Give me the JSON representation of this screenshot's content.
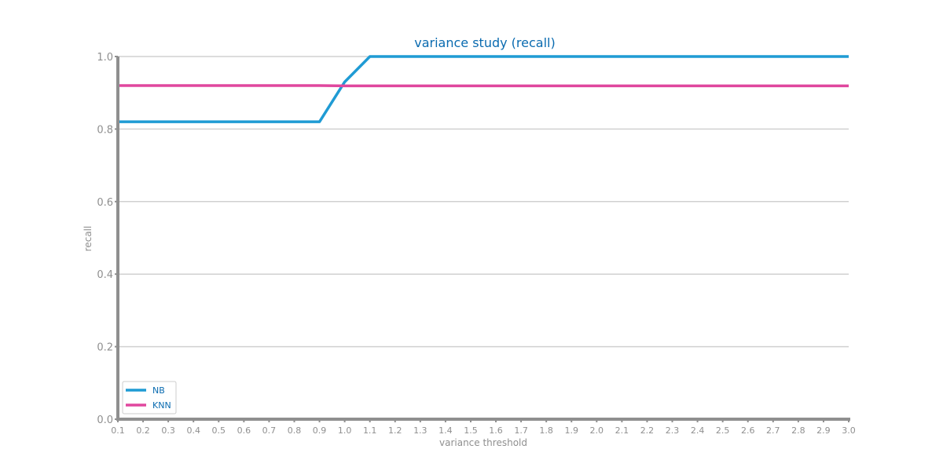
{
  "chart_data": {
    "type": "line",
    "title": "variance study (recall)",
    "xlabel": "variance threshold",
    "ylabel": "recall",
    "x": [
      0.1,
      0.2,
      0.3,
      0.4,
      0.5,
      0.6,
      0.7,
      0.8,
      0.9,
      1.0,
      1.1,
      1.2,
      1.3,
      1.4,
      1.5,
      1.6,
      1.7,
      1.8,
      1.9,
      2.0,
      2.1,
      2.2,
      2.3,
      2.4,
      2.5,
      2.6,
      2.7,
      2.8,
      2.9,
      3.0
    ],
    "x_tick_labels": [
      "0.1",
      "0.2",
      "0.3",
      "0.4",
      "0.5",
      "0.6",
      "0.7",
      "0.8",
      "0.9",
      "1.0",
      "1.1",
      "1.2",
      "1.3",
      "1.4",
      "1.5",
      "1.6",
      "1.7",
      "1.8",
      "1.9",
      "2.0",
      "2.1",
      "2.2",
      "2.3",
      "2.4",
      "2.5",
      "2.6",
      "2.7",
      "2.8",
      "2.9",
      "3.0"
    ],
    "y_tick_values": [
      0.0,
      0.2,
      0.4,
      0.6,
      0.8,
      1.0
    ],
    "y_tick_labels": [
      "0.0",
      "0.2",
      "0.4",
      "0.6",
      "0.8",
      "1.0"
    ],
    "xlim": [
      0.1,
      3.0
    ],
    "ylim": [
      0.0,
      1.0
    ],
    "grid": "horizontal",
    "legend_position": "bottom-left",
    "series": [
      {
        "name": "NB",
        "color": "#1f9bd4",
        "values": [
          0.82,
          0.82,
          0.82,
          0.82,
          0.82,
          0.82,
          0.82,
          0.82,
          0.82,
          0.93,
          1.0,
          1.0,
          1.0,
          1.0,
          1.0,
          1.0,
          1.0,
          1.0,
          1.0,
          1.0,
          1.0,
          1.0,
          1.0,
          1.0,
          1.0,
          1.0,
          1.0,
          1.0,
          1.0,
          1.0
        ]
      },
      {
        "name": "KNN",
        "color": "#e0479e",
        "values": [
          0.92,
          0.92,
          0.92,
          0.92,
          0.92,
          0.92,
          0.92,
          0.92,
          0.92,
          0.919,
          0.919,
          0.919,
          0.919,
          0.919,
          0.919,
          0.919,
          0.919,
          0.919,
          0.919,
          0.919,
          0.919,
          0.919,
          0.919,
          0.919,
          0.919,
          0.919,
          0.919,
          0.919,
          0.919,
          0.919
        ]
      }
    ]
  }
}
